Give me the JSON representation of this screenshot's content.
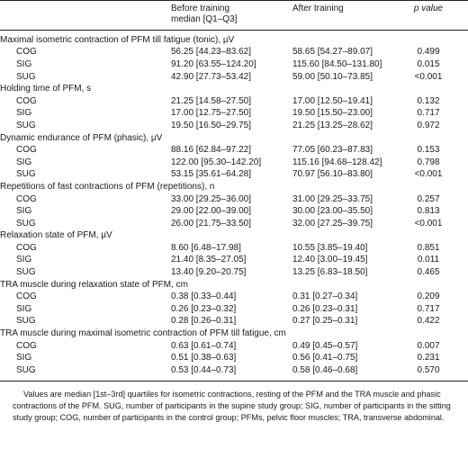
{
  "header": {
    "col1": "",
    "col2_line1": "Before training",
    "col2_line2": "median [Q1–Q3]",
    "col3": "After training",
    "col4": "p value"
  },
  "sections": [
    {
      "title": "Maximal isometric contraction of PFM till fatigue (tonic), µV",
      "rows": [
        {
          "group": "COG",
          "before": "56.25 [44.23–83.62]",
          "after": "58.65 [54.27–89.07]",
          "p": "0.499"
        },
        {
          "group": "SIG",
          "before": "91.20 [63.55–124.20]",
          "after": "115.60 [84.50–131.80]",
          "p": "0.015"
        },
        {
          "group": "SUG",
          "before": "42.90 [27.73–53.42]",
          "after": "59.00 [50.10–73.85]",
          "p": "<0.001"
        }
      ]
    },
    {
      "title": "Holding time of PFM, s",
      "rows": [
        {
          "group": "COG",
          "before": "21.25 [14.58–27.50]",
          "after": "17.00 [12.50–19.41]",
          "p": "0.132"
        },
        {
          "group": "SIG",
          "before": "17.00 [12.75–27.50]",
          "after": "19.50 [15.50–23.00]",
          "p": "0.717"
        },
        {
          "group": "SUG",
          "before": "19.50 [16.50–29.75]",
          "after": "21.25 [13.25–28.62]",
          "p": "0.972"
        }
      ]
    },
    {
      "title": "Dynamic endurance of PFM (phasic), µV",
      "rows": [
        {
          "group": "COG",
          "before": "88.16 [62.84–97.22]",
          "after": "77.05 [60.23–87.83]",
          "p": "0.153"
        },
        {
          "group": "SIG",
          "before": "122.00 [95.30–142.20]",
          "after": "115.16 [94.68–128.42]",
          "p": "0.798"
        },
        {
          "group": "SUG",
          "before": "53.15 [35.61–64.28]",
          "after": "70.97 [56.10–83.80]",
          "p": "<0.001"
        }
      ]
    },
    {
      "title": "Repetitions of fast contractions of PFM (repetitions), n",
      "rows": [
        {
          "group": "COG",
          "before": "33.00 [29.25–36.00]",
          "after": "31.00 [29.25–33.75]",
          "p": "0.257"
        },
        {
          "group": "SIG",
          "before": "29.00 [22.00–39.00]",
          "after": "30.00 [23.00–35.50]",
          "p": "0.813"
        },
        {
          "group": "SUG",
          "before": "26.00 [21.75–33.50]",
          "after": "32.00 [27.25–39.75]",
          "p": "<0.001"
        }
      ]
    },
    {
      "title": "Relaxation state of PFM, µV",
      "rows": [
        {
          "group": "COG",
          "before": "8.60 [6.48–17.98]",
          "after": "10.55 [3.85–19.40]",
          "p": "0.851"
        },
        {
          "group": "SIG",
          "before": "21.40 [8.35–27.05]",
          "after": "12.40 [3.00–19.45]",
          "p": "0.011"
        },
        {
          "group": "SUG",
          "before": "13.40 [9.20–20.75]",
          "after": "13.25 [6.83–18.50]",
          "p": "0.465"
        }
      ]
    },
    {
      "title": "TRA muscle during relaxation state of PFM, cm",
      "rows": [
        {
          "group": "COG",
          "before": "0.38 [0.33–0.44]",
          "after": "0.31 [0.27–0.34]",
          "p": "0.209"
        },
        {
          "group": "SIG",
          "before": "0.26 [0.23–0.32]",
          "after": "0.26 [0.23–0.31]",
          "p": "0.717"
        },
        {
          "group": "SUG",
          "before": "0.28 [0.26–0.31]",
          "after": "0.27 [0.25–0.31]",
          "p": "0.422"
        }
      ]
    },
    {
      "title": "TRA muscle during maximal isometric contraction of PFM till fatigue, cm",
      "rows": [
        {
          "group": "COG",
          "before": "0.63 [0.61–0.74]",
          "after": "0.49 [0.45–0.57]",
          "p": "0.007"
        },
        {
          "group": "SIG",
          "before": "0.51 [0.38–0.63]",
          "after": "0.56 [0.41–0.75]",
          "p": "0.231"
        },
        {
          "group": "SUG",
          "before": "0.53 [0.44–0.73]",
          "after": "0.58 [0.46–0.68]",
          "p": "0.570"
        }
      ]
    }
  ],
  "footnote": "Values are median [1st–3rd] quartiles for isometric contractions, resting of the PFM and the TRA muscle and phasic contractions of the PFM. SUG, number of participants in the supine study group; SIG, number of participants in the sitting study group; COG, number of participants in the control group; PFMs, pelvic floor muscles; TRA, transverse abdominal."
}
